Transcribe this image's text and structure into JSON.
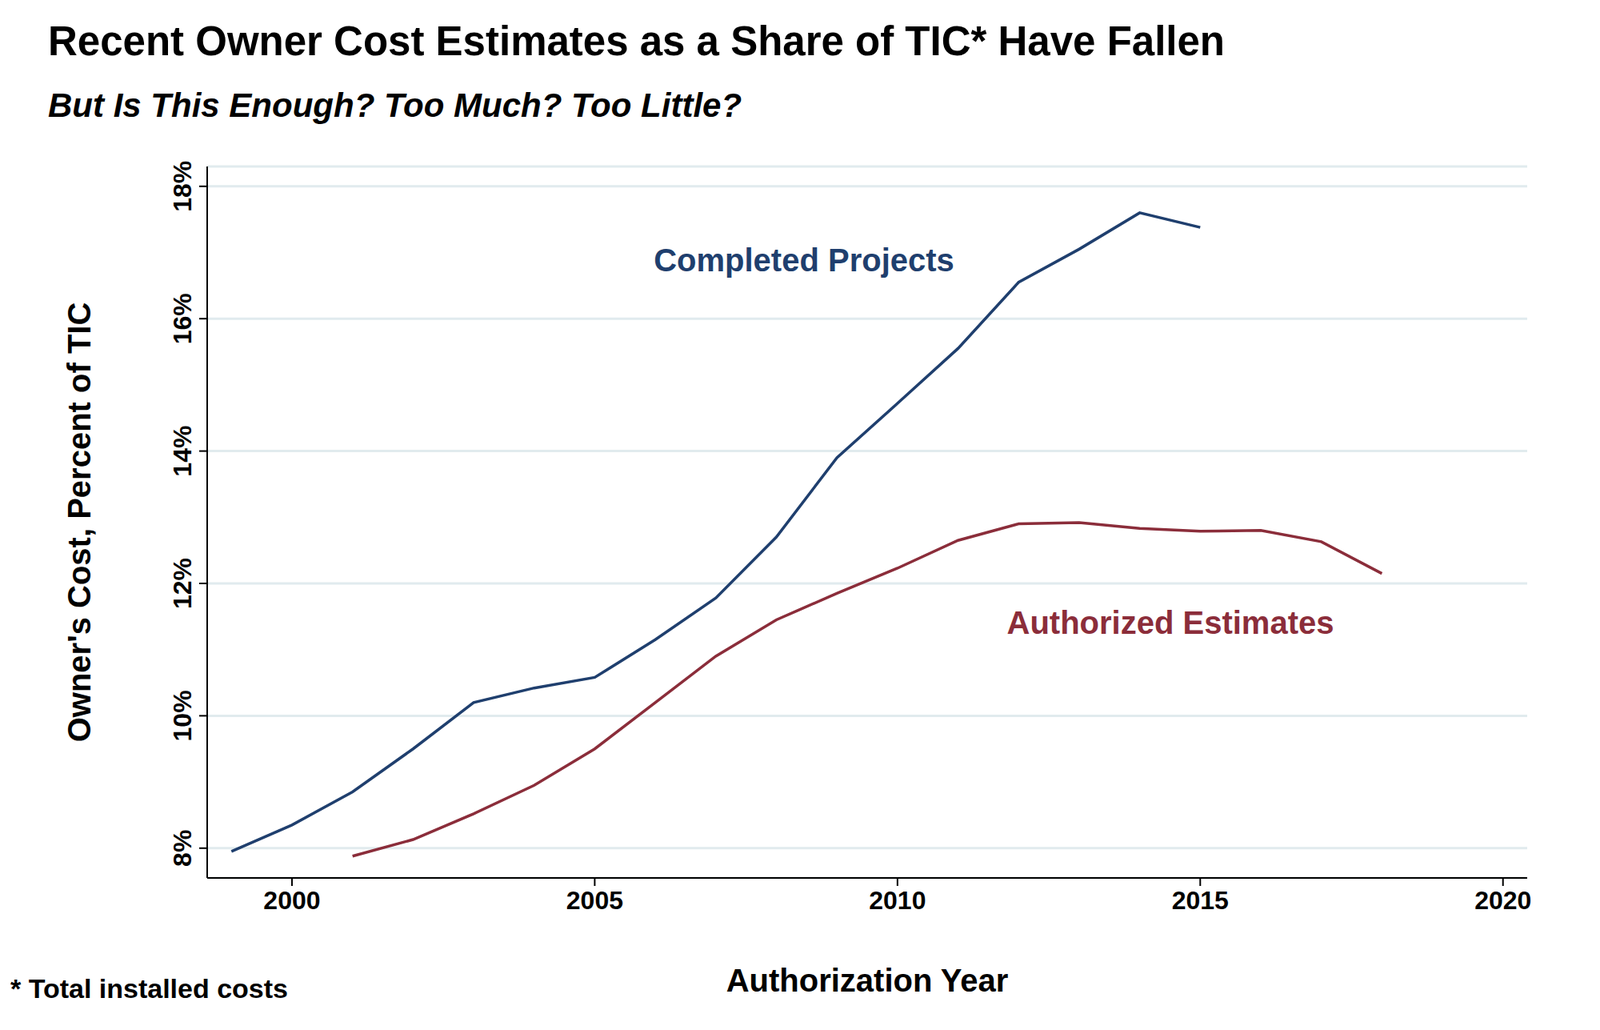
{
  "chart_data": {
    "type": "line",
    "title": "Recent Owner Cost Estimates as a Share of TIC* Have Fallen",
    "subtitle": "But Is This Enough? Too Much? Too Little?",
    "footnote": "* Total installed costs",
    "x_label": "Authorization Year",
    "y_label": "Owner's Cost, Percent of TIC",
    "xlim": [
      1998.6,
      2020.4
    ],
    "xticks": [
      2000,
      2005,
      2010,
      2015,
      2020
    ],
    "ylim": [
      7.55,
      18.3
    ],
    "yticks": [
      {
        "value": 8,
        "label": "8%"
      },
      {
        "value": 10,
        "label": "10%"
      },
      {
        "value": 12,
        "label": "12%"
      },
      {
        "value": 14,
        "label": "14%"
      },
      {
        "value": 16,
        "label": "16%"
      },
      {
        "value": 18,
        "label": "18%"
      }
    ],
    "grid": "y",
    "series": [
      {
        "name": "Completed Projects",
        "color": "#1f3f6e",
        "x": [
          1999,
          2000,
          2001,
          2002,
          2003,
          2004,
          2005,
          2006,
          2007,
          2008,
          2009,
          2010,
          2011,
          2012,
          2013,
          2014,
          2015
        ],
        "values": [
          7.95,
          8.35,
          8.85,
          9.5,
          10.2,
          10.42,
          10.58,
          11.15,
          11.78,
          12.7,
          13.9,
          14.72,
          15.55,
          16.55,
          17.05,
          17.6,
          17.38
        ]
      },
      {
        "name": "Authorized Estimates",
        "color": "#8b2d3a",
        "x": [
          2001,
          2002,
          2003,
          2004,
          2005,
          2006,
          2007,
          2008,
          2009,
          2010,
          2011,
          2012,
          2013,
          2014,
          2015,
          2016,
          2017,
          2018
        ],
        "values": [
          7.88,
          8.13,
          8.52,
          8.95,
          9.5,
          10.2,
          10.9,
          11.45,
          11.85,
          12.23,
          12.65,
          12.9,
          12.92,
          12.83,
          12.79,
          12.8,
          12.63,
          12.15
        ]
      }
    ]
  }
}
